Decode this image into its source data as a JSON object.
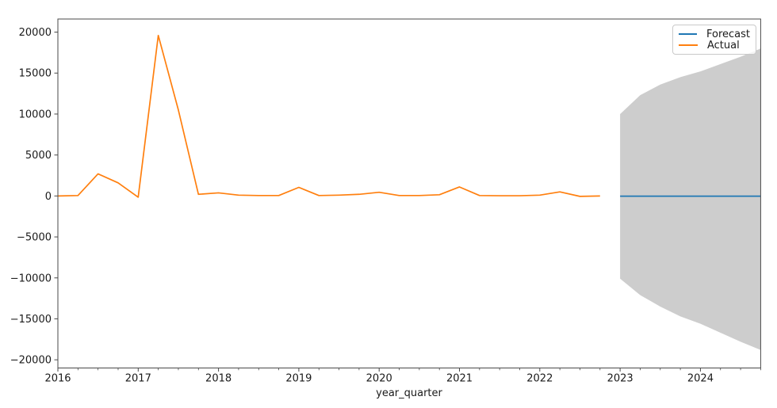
{
  "figure": {
    "background": "#ffffff",
    "spine_color": "#4a4a4a"
  },
  "legend": {
    "position": "upper right",
    "items": [
      {
        "label": "Forecast",
        "color": "#1f77b4"
      },
      {
        "label": "Actual",
        "color": "#ff7f0e"
      }
    ]
  },
  "axes": {
    "xlabel": "year_quarter",
    "x_major_ticks": [
      2016,
      2017,
      2018,
      2019,
      2020,
      2021,
      2022,
      2023,
      2024
    ],
    "x_tick_labels": [
      "2016",
      "2017",
      "2018",
      "2019",
      "2020",
      "2021",
      "2022",
      "2023",
      "2024"
    ],
    "x_minor_tick_step": 0.25,
    "y_ticks": [
      -20000,
      -15000,
      -10000,
      -5000,
      0,
      5000,
      10000,
      15000,
      20000
    ],
    "y_tick_labels": [
      "−20000",
      "−15000",
      "−10000",
      "−5000",
      "0",
      "5000",
      "10000",
      "15000",
      "20000"
    ]
  },
  "chart_data": {
    "type": "line",
    "xlabel": "year_quarter",
    "ylabel": "",
    "xlim": [
      2016.0,
      2024.75
    ],
    "ylim": [
      -21000,
      21600
    ],
    "grid": false,
    "legend_position": "upper right",
    "series": [
      {
        "name": "Forecast",
        "color": "#1f77b4",
        "quarters": [
          "2023Q1",
          "2023Q2",
          "2023Q3",
          "2023Q4",
          "2024Q1",
          "2024Q2",
          "2024Q3",
          "2024Q4"
        ],
        "x": [
          2023.0,
          2023.25,
          2023.5,
          2023.75,
          2024.0,
          2024.25,
          2024.5,
          2024.75
        ],
        "y": [
          -30,
          -30,
          -30,
          -30,
          -30,
          -30,
          -30,
          -30
        ]
      },
      {
        "name": "Actual",
        "color": "#ff7f0e",
        "quarters": [
          "2016Q1",
          "2016Q2",
          "2016Q3",
          "2016Q4",
          "2017Q1",
          "2017Q2",
          "2017Q3",
          "2017Q4",
          "2018Q1",
          "2018Q2",
          "2018Q3",
          "2018Q4",
          "2019Q1",
          "2019Q2",
          "2019Q3",
          "2019Q4",
          "2020Q1",
          "2020Q2",
          "2020Q3",
          "2020Q4",
          "2021Q1",
          "2021Q2",
          "2021Q3",
          "2021Q4",
          "2022Q1",
          "2022Q2",
          "2022Q3",
          "2022Q4"
        ],
        "x": [
          2016.0,
          2016.25,
          2016.5,
          2016.75,
          2017.0,
          2017.25,
          2017.5,
          2017.75,
          2018.0,
          2018.25,
          2018.5,
          2018.75,
          2019.0,
          2019.25,
          2019.5,
          2019.75,
          2020.0,
          2020.25,
          2020.5,
          2020.75,
          2021.0,
          2021.25,
          2021.5,
          2021.75,
          2022.0,
          2022.25,
          2022.5,
          2022.75
        ],
        "y": [
          0,
          50,
          2700,
          1600,
          -150,
          19600,
          10500,
          200,
          380,
          100,
          50,
          50,
          1050,
          50,
          100,
          200,
          450,
          50,
          50,
          150,
          1100,
          50,
          30,
          30,
          100,
          500,
          -50,
          0
        ]
      }
    ],
    "confidence_band": {
      "series": "Forecast",
      "color": "#cdcdcd",
      "quarters": [
        "2023Q1",
        "2023Q2",
        "2023Q3",
        "2023Q4",
        "2024Q1",
        "2024Q2",
        "2024Q3",
        "2024Q4"
      ],
      "x": [
        2023.0,
        2023.25,
        2023.5,
        2023.75,
        2024.0,
        2024.25,
        2024.5,
        2024.75
      ],
      "upper": [
        10000,
        12300,
        13600,
        14500,
        15200,
        16100,
        17000,
        18000
      ],
      "lower": [
        -10100,
        -12100,
        -13500,
        -14700,
        -15600,
        -16700,
        -17800,
        -18800
      ]
    }
  }
}
